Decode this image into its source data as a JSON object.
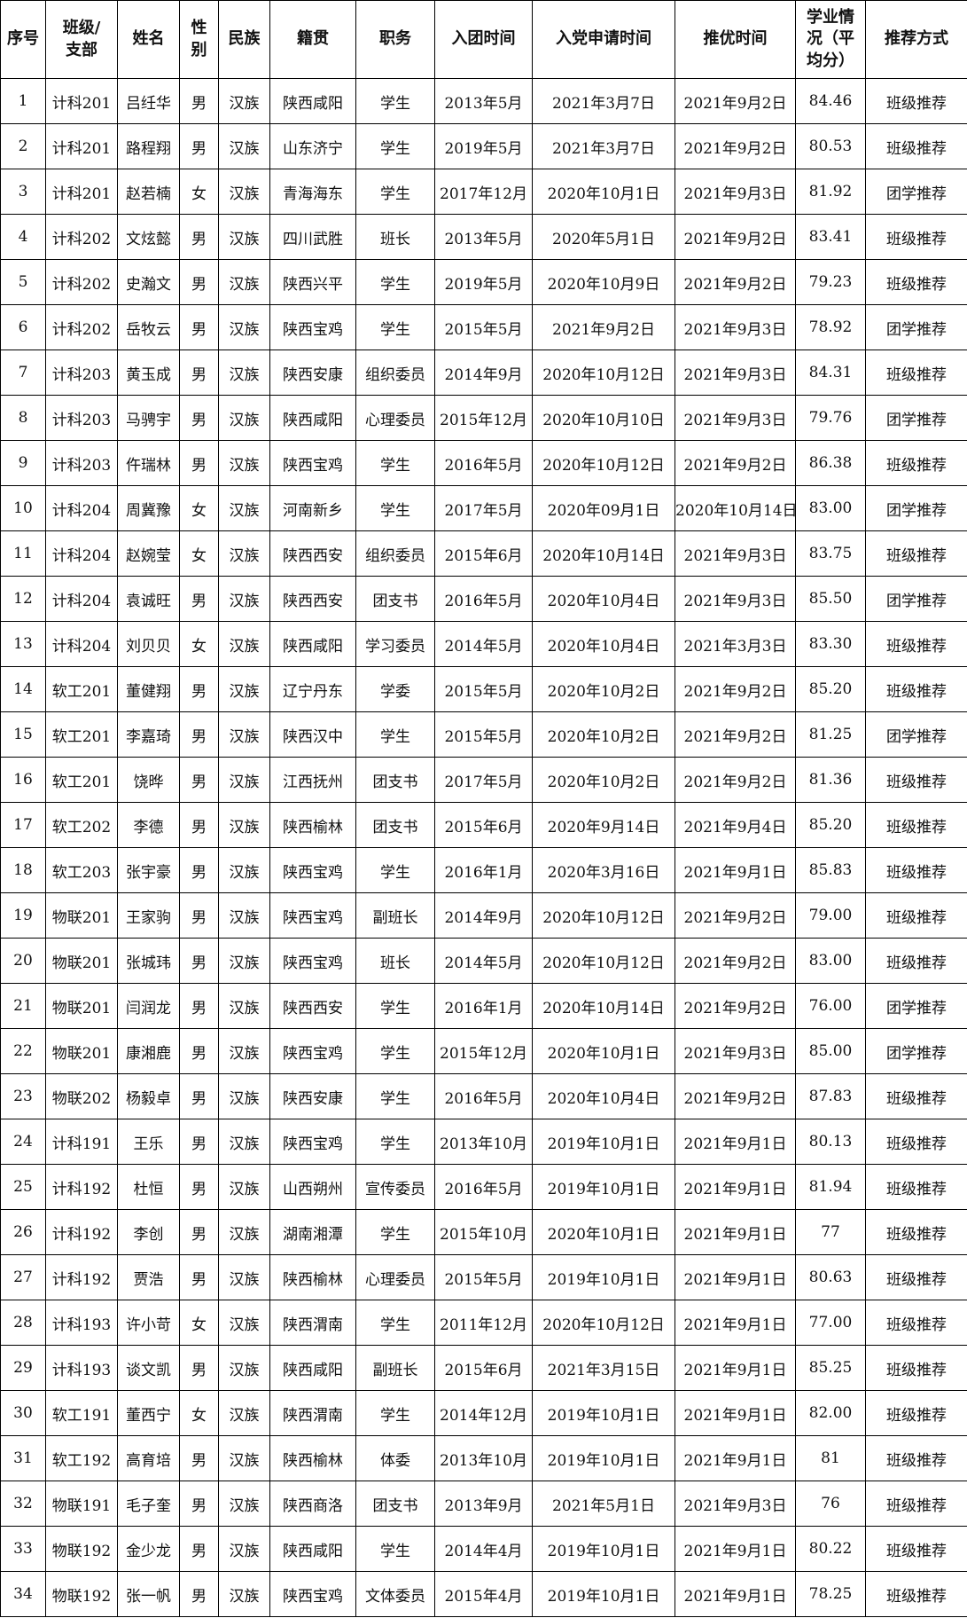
{
  "headers": [
    "序号",
    "班级/支部",
    "姓名",
    "性别",
    "民族",
    "籍贯",
    "职务",
    "入团时间",
    "入党申请时间",
    "推优时间",
    "学业情况（平均分）",
    "推荐方式"
  ],
  "rows": [
    [
      "1",
      "计科201",
      "吕纴华",
      "男",
      "汉族",
      "陕西咸阳",
      "学生",
      "2013年5月",
      "2021年3月7日",
      "2021年9月2日",
      "84.46",
      "班级推荐"
    ],
    [
      "2",
      "计科201",
      "路程翔",
      "男",
      "汉族",
      "山东济宁",
      "学生",
      "2019年5月",
      "2021年3月7日",
      "2021年9月2日",
      "80.53",
      "班级推荐"
    ],
    [
      "3",
      "计科201",
      "赵若楠",
      "女",
      "汉族",
      "青海海东",
      "学生",
      "2017年12月",
      "2020年10月1日",
      "2021年9月3日",
      "81.92",
      "团学推荐"
    ],
    [
      "4",
      "计科202",
      "文炫懿",
      "男",
      "汉族",
      "四川武胜",
      "班长",
      "2013年5月",
      "2020年5月1日",
      "2021年9月2日",
      "83.41",
      "班级推荐"
    ],
    [
      "5",
      "计科202",
      "史瀚文",
      "男",
      "汉族",
      "陕西兴平",
      "学生",
      "2019年5月",
      "2020年10月9日",
      "2021年9月2日",
      "79.23",
      "班级推荐"
    ],
    [
      "6",
      "计科202",
      "岳牧云",
      "男",
      "汉族",
      "陕西宝鸡",
      "学生",
      "2015年5月",
      "2021年9月2日",
      "2021年9月3日",
      "78.92",
      "团学推荐"
    ],
    [
      "7",
      "计科203",
      "黄玉成",
      "男",
      "汉族",
      "陕西安康",
      "组织委员",
      "2014年9月",
      "2020年10月12日",
      "2021年9月3日",
      "84.31",
      "班级推荐"
    ],
    [
      "8",
      "计科203",
      "马骋宇",
      "男",
      "汉族",
      "陕西咸阳",
      "心理委员",
      "2015年12月",
      "2020年10月10日",
      "2021年9月3日",
      "79.76",
      "团学推荐"
    ],
    [
      "9",
      "计科203",
      "仵瑞林",
      "男",
      "汉族",
      "陕西宝鸡",
      "学生",
      "2016年5月",
      "2020年10月12日",
      "2021年9月2日",
      "86.38",
      "班级推荐"
    ],
    [
      "10",
      "计科204",
      "周冀豫",
      "女",
      "汉族",
      "河南新乡",
      "学生",
      "2017年5月",
      "2020年09月1日",
      "2020年10月14日",
      "83.00",
      "团学推荐"
    ],
    [
      "11",
      "计科204",
      "赵婉莹",
      "女",
      "汉族",
      "陕西西安",
      "组织委员",
      "2015年6月",
      "2020年10月14日",
      "2021年9月3日",
      "83.75",
      "班级推荐"
    ],
    [
      "12",
      "计科204",
      "袁诚旺",
      "男",
      "汉族",
      "陕西西安",
      "团支书",
      "2016年5月",
      "2020年10月4日",
      "2021年9月3日",
      "85.50",
      "团学推荐"
    ],
    [
      "13",
      "计科204",
      "刘贝贝",
      "女",
      "汉族",
      "陕西咸阳",
      "学习委员",
      "2014年5月",
      "2020年10月4日",
      "2021年3月3日",
      "83.30",
      "班级推荐"
    ],
    [
      "14",
      "软工201",
      "董健翔",
      "男",
      "汉族",
      "辽宁丹东",
      "学委",
      "2015年5月",
      "2020年10月2日",
      "2021年9月2日",
      "85.20",
      "班级推荐"
    ],
    [
      "15",
      "软工201",
      "李嘉琦",
      "男",
      "汉族",
      "陕西汉中",
      "学生",
      "2015年5月",
      "2020年10月2日",
      "2021年9月2日",
      "81.25",
      "团学推荐"
    ],
    [
      "16",
      "软工201",
      "饶晔",
      "男",
      "汉族",
      "江西抚州",
      "团支书",
      "2017年5月",
      "2020年10月2日",
      "2021年9月2日",
      "81.36",
      "班级推荐"
    ],
    [
      "17",
      "软工202",
      "李德",
      "男",
      "汉族",
      "陕西榆林",
      "团支书",
      "2015年6月",
      "2020年9月14日",
      "2021年9月4日",
      "85.20",
      "班级推荐"
    ],
    [
      "18",
      "软工203",
      "张宇豪",
      "男",
      "汉族",
      "陕西宝鸡",
      "学生",
      "2016年1月",
      "2020年3月16日",
      "2021年9月1日",
      "85.83",
      "班级推荐"
    ],
    [
      "19",
      "物联201",
      "王家驹",
      "男",
      "汉族",
      "陕西宝鸡",
      "副班长",
      "2014年9月",
      "2020年10月12日",
      "2021年9月2日",
      "79.00",
      "班级推荐"
    ],
    [
      "20",
      "物联201",
      "张城玮",
      "男",
      "汉族",
      "陕西宝鸡",
      "班长",
      "2014年5月",
      "2020年10月12日",
      "2021年9月2日",
      "83.00",
      "班级推荐"
    ],
    [
      "21",
      "物联201",
      "闫润龙",
      "男",
      "汉族",
      "陕西西安",
      "学生",
      "2016年1月",
      "2020年10月14日",
      "2021年9月2日",
      "76.00",
      "团学推荐"
    ],
    [
      "22",
      "物联201",
      "康湘鹿",
      "男",
      "汉族",
      "陕西宝鸡",
      "学生",
      "2015年12月",
      "2020年10月1日",
      "2021年9月3日",
      "85.00",
      "团学推荐"
    ],
    [
      "23",
      "物联202",
      "杨毅卓",
      "男",
      "汉族",
      "陕西安康",
      "学生",
      "2016年5月",
      "2020年10月4日",
      "2021年9月2日",
      "87.83",
      "班级推荐"
    ],
    [
      "24",
      "计科191",
      "王乐",
      "男",
      "汉族",
      "陕西宝鸡",
      "学生",
      "2013年10月",
      "2019年10月1日",
      "2021年9月1日",
      "80.13",
      "班级推荐"
    ],
    [
      "25",
      "计科192",
      "杜恒",
      "男",
      "汉族",
      "山西朔州",
      "宣传委员",
      "2016年5月",
      "2019年10月1日",
      "2021年9月1日",
      "81.94",
      "班级推荐"
    ],
    [
      "26",
      "计科192",
      "李创",
      "男",
      "汉族",
      "湖南湘潭",
      "学生",
      "2015年10月",
      "2020年10月1日",
      "2021年9月1日",
      "77",
      "班级推荐"
    ],
    [
      "27",
      "计科192",
      "贾浩",
      "男",
      "汉族",
      "陕西榆林",
      "心理委员",
      "2015年5月",
      "2019年10月1日",
      "2021年9月1日",
      "80.63",
      "班级推荐"
    ],
    [
      "28",
      "计科193",
      "许小苛",
      "女",
      "汉族",
      "陕西渭南",
      "学生",
      "2011年12月",
      "2020年10月12日",
      "2021年9月1日",
      "77.00",
      "班级推荐"
    ],
    [
      "29",
      "计科193",
      "谈文凯",
      "男",
      "汉族",
      "陕西咸阳",
      "副班长",
      "2015年6月",
      "2021年3月15日",
      "2021年9月1日",
      "85.25",
      "班级推荐"
    ],
    [
      "30",
      "软工191",
      "董西宁",
      "女",
      "汉族",
      "陕西渭南",
      "学生",
      "2014年12月",
      "2019年10月1日",
      "2021年9月1日",
      "82.00",
      "班级推荐"
    ],
    [
      "31",
      "软工192",
      "高育培",
      "男",
      "汉族",
      "陕西榆林",
      "体委",
      "2013年10月",
      "2019年10月1日",
      "2021年9月1日",
      "81",
      "班级推荐"
    ],
    [
      "32",
      "物联191",
      "毛子奎",
      "男",
      "汉族",
      "陕西商洛",
      "团支书",
      "2013年9月",
      "2021年5月1日",
      "2021年9月3日",
      "76",
      "班级推荐"
    ],
    [
      "33",
      "物联192",
      "金少龙",
      "男",
      "汉族",
      "陕西咸阳",
      "学生",
      "2014年4月",
      "2019年10月1日",
      "2021年9月1日",
      "80.22",
      "班级推荐"
    ],
    [
      "34",
      "物联192",
      "张一帆",
      "男",
      "汉族",
      "陕西宝鸡",
      "文体委员",
      "2015年4月",
      "2019年10月1日",
      "2021年9月1日",
      "78.25",
      "班级推荐"
    ]
  ]
}
